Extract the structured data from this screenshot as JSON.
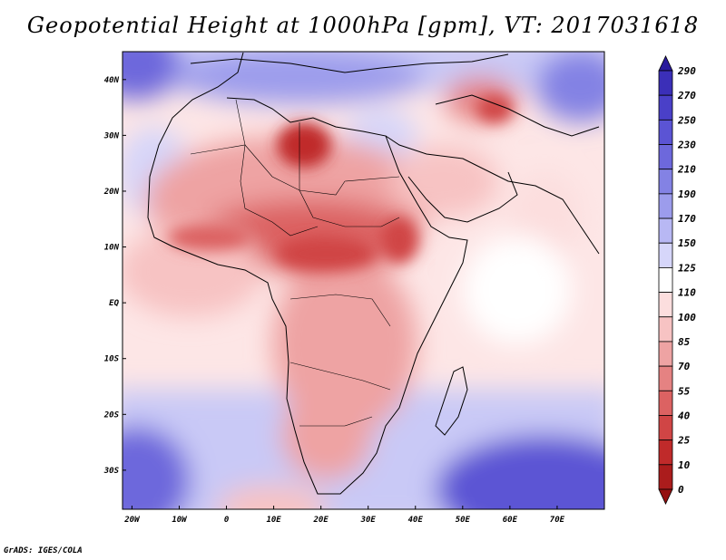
{
  "title": "Geopotential Height at 1000hPa [gpm], VT: 2017031618",
  "footer": "GrADS: IGES/COLA",
  "map": {
    "lon_range": [
      -22,
      80
    ],
    "lat_range": [
      -37,
      45
    ],
    "x_ticks": [
      {
        "value": -20,
        "label": "20W"
      },
      {
        "value": -10,
        "label": "10W"
      },
      {
        "value": 0,
        "label": "0"
      },
      {
        "value": 10,
        "label": "10E"
      },
      {
        "value": 20,
        "label": "20E"
      },
      {
        "value": 30,
        "label": "30E"
      },
      {
        "value": 40,
        "label": "40E"
      },
      {
        "value": 50,
        "label": "50E"
      },
      {
        "value": 60,
        "label": "60E"
      },
      {
        "value": 70,
        "label": "70E"
      }
    ],
    "y_ticks": [
      {
        "value": 40,
        "label": "40N"
      },
      {
        "value": 30,
        "label": "30N"
      },
      {
        "value": 20,
        "label": "20N"
      },
      {
        "value": 10,
        "label": "10N"
      },
      {
        "value": 0,
        "label": "EQ"
      },
      {
        "value": -10,
        "label": "10S"
      },
      {
        "value": -20,
        "label": "20S"
      },
      {
        "value": -30,
        "label": "30S"
      }
    ]
  },
  "colorbar": {
    "labels": [
      "290",
      "270",
      "250",
      "230",
      "210",
      "190",
      "170",
      "150",
      "125",
      "110",
      "100",
      "85",
      "70",
      "55",
      "40",
      "25",
      "10",
      "0"
    ],
    "colors": [
      "#2a1a9c",
      "#3b2fb8",
      "#4a40c8",
      "#5b54d4",
      "#6d68dc",
      "#8382e4",
      "#9c9cec",
      "#b8b8f4",
      "#d6d6fa",
      "#ffffff",
      "#fcdede",
      "#f7c3c3",
      "#eea3a3",
      "#e58282",
      "#dc6262",
      "#d04545",
      "#c02a2a",
      "#ab1c1c",
      "#951010"
    ]
  }
}
